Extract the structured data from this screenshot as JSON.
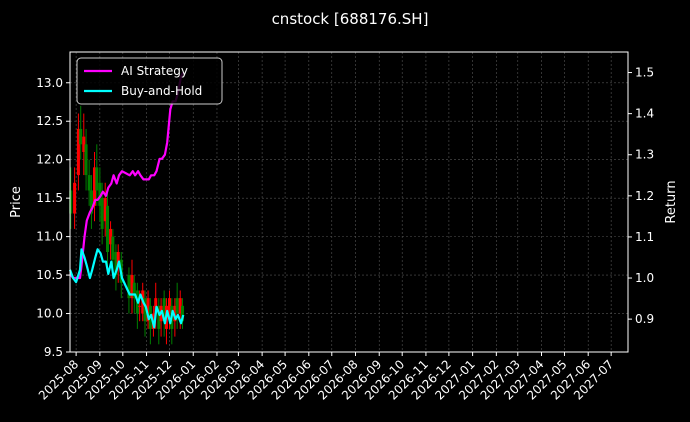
{
  "title": "cnstock [688176.SH]",
  "colors": {
    "background": "#000000",
    "ai_strategy": "#ff00ff",
    "buy_and_hold": "#00ffff",
    "candle_up": "#ff0000",
    "candle_down": "#008000",
    "grid": "#555555"
  },
  "chart_data": {
    "type": "line",
    "title": "cnstock [688176.SH]",
    "grid": true,
    "legend_placement": "top-left",
    "left_axis": {
      "label": "Price",
      "ylim": [
        9.5,
        13.4
      ],
      "ticks": [
        "9.5",
        "10.0",
        "10.5",
        "11.0",
        "11.5",
        "12.0",
        "12.5",
        "13.0"
      ]
    },
    "right_axis": {
      "label": "Return",
      "ylim": [
        0.82,
        1.55
      ],
      "ticks": [
        "0.9",
        "1.0",
        "1.1",
        "1.2",
        "1.3",
        "1.4",
        "1.5"
      ]
    },
    "x_axis": {
      "range": [
        "2025-07-24",
        "2027-07-23"
      ],
      "ticks": [
        "2025-08",
        "2025-09",
        "2025-10",
        "2025-11",
        "2025-12",
        "2026-01",
        "2026-02",
        "2026-03",
        "2026-04",
        "2026-05",
        "2026-06",
        "2026-07",
        "2026-08",
        "2026-09",
        "2026-10",
        "2026-11",
        "2026-12",
        "2027-01",
        "2027-02",
        "2027-03",
        "2027-04",
        "2027-05",
        "2027-06",
        "2027-07"
      ]
    },
    "series": [
      {
        "name": "AI Strategy",
        "axis": "right",
        "x": [
          "2025-07-24",
          "2025-07-28",
          "2025-08-01",
          "2025-08-06",
          "2025-08-08",
          "2025-08-12",
          "2025-08-15",
          "2025-08-19",
          "2025-08-22",
          "2025-08-26",
          "2025-08-29",
          "2025-09-02",
          "2025-09-05",
          "2025-09-09",
          "2025-09-12",
          "2025-09-16",
          "2025-09-19",
          "2025-09-23",
          "2025-09-26",
          "2025-09-30",
          "2025-10-10",
          "2025-10-14",
          "2025-10-17",
          "2025-10-21",
          "2025-10-24",
          "2025-10-28",
          "2025-10-31",
          "2025-11-04",
          "2025-11-07",
          "2025-11-11",
          "2025-11-14",
          "2025-11-18",
          "2025-11-21",
          "2025-11-25",
          "2025-11-28",
          "2025-12-02",
          "2025-12-05",
          "2025-12-09",
          "2025-12-12",
          "2025-12-16",
          "2025-12-19"
        ],
        "values": [
          1.01,
          1.0,
          1.0,
          1.0,
          1.03,
          1.1,
          1.14,
          1.16,
          1.17,
          1.19,
          1.19,
          1.2,
          1.21,
          1.2,
          1.22,
          1.23,
          1.25,
          1.23,
          1.25,
          1.26,
          1.25,
          1.26,
          1.25,
          1.26,
          1.25,
          1.24,
          1.24,
          1.24,
          1.25,
          1.25,
          1.26,
          1.29,
          1.29,
          1.3,
          1.33,
          1.41,
          1.43,
          1.43,
          1.45,
          1.49,
          1.5
        ]
      },
      {
        "name": "Buy-and-Hold",
        "axis": "right",
        "x": [
          "2025-07-24",
          "2025-07-28",
          "2025-08-01",
          "2025-08-06",
          "2025-08-08",
          "2025-08-12",
          "2025-08-15",
          "2025-08-19",
          "2025-08-22",
          "2025-08-26",
          "2025-08-29",
          "2025-09-02",
          "2025-09-05",
          "2025-09-09",
          "2025-09-12",
          "2025-09-16",
          "2025-09-19",
          "2025-09-23",
          "2025-09-26",
          "2025-09-30",
          "2025-10-10",
          "2025-10-14",
          "2025-10-17",
          "2025-10-21",
          "2025-10-24",
          "2025-10-28",
          "2025-10-31",
          "2025-11-04",
          "2025-11-07",
          "2025-11-11",
          "2025-11-14",
          "2025-11-18",
          "2025-11-21",
          "2025-11-25",
          "2025-11-28",
          "2025-12-02",
          "2025-12-05",
          "2025-12-09",
          "2025-12-12",
          "2025-12-16",
          "2025-12-19"
        ],
        "values": [
          1.02,
          1.0,
          0.99,
          1.02,
          1.07,
          1.05,
          1.03,
          1.0,
          1.02,
          1.05,
          1.07,
          1.06,
          1.04,
          1.04,
          1.01,
          1.04,
          1.0,
          1.02,
          1.04,
          1.0,
          0.96,
          0.96,
          0.96,
          0.94,
          0.96,
          0.94,
          0.93,
          0.9,
          0.91,
          0.88,
          0.93,
          0.91,
          0.92,
          0.89,
          0.92,
          0.89,
          0.92,
          0.9,
          0.91,
          0.89,
          0.91
        ]
      },
      {
        "name": "",
        "type": "candlestick",
        "axis": "left",
        "x": [
          "2025-07-25",
          "2025-07-30",
          "2025-08-04",
          "2025-08-07",
          "2025-08-11",
          "2025-08-14",
          "2025-08-18",
          "2025-08-21",
          "2025-08-25",
          "2025-08-28",
          "2025-09-01",
          "2025-09-04",
          "2025-09-08",
          "2025-09-11",
          "2025-09-15",
          "2025-09-18",
          "2025-09-22",
          "2025-09-25",
          "2025-09-29",
          "2025-10-09",
          "2025-10-13",
          "2025-10-16",
          "2025-10-20",
          "2025-10-23",
          "2025-10-27",
          "2025-10-30",
          "2025-11-03",
          "2025-11-06",
          "2025-11-10",
          "2025-11-13",
          "2025-11-17",
          "2025-11-20",
          "2025-11-24",
          "2025-11-27",
          "2025-12-01",
          "2025-12-04",
          "2025-12-08",
          "2025-12-11",
          "2025-12-15",
          "2025-12-18"
        ],
        "open": [
          11.6,
          11.3,
          11.8,
          12.4,
          12.1,
          12.2,
          11.8,
          11.6,
          11.4,
          11.9,
          11.7,
          11.5,
          11.2,
          11.4,
          10.9,
          11.0,
          10.8,
          10.6,
          10.7,
          10.5,
          10.2,
          10.4,
          10.3,
          10.1,
          10.0,
          10.2,
          9.9,
          10.1,
          9.8,
          10.0,
          10.1,
          9.9,
          10.2,
          9.8,
          10.0,
          10.1,
          9.9,
          10.2,
          10.0,
          10.1
        ],
        "close": [
          11.3,
          11.7,
          12.4,
          12.2,
          12.3,
          11.8,
          11.6,
          11.3,
          11.9,
          11.6,
          11.4,
          11.1,
          11.5,
          10.8,
          11.1,
          10.7,
          10.5,
          10.8,
          10.4,
          10.2,
          10.5,
          10.2,
          10.0,
          10.1,
          10.3,
          9.9,
          10.2,
          9.8,
          10.0,
          10.2,
          9.8,
          10.1,
          9.9,
          10.1,
          10.2,
          9.8,
          10.1,
          10.0,
          10.2,
          9.9
        ],
        "high": [
          11.9,
          11.9,
          12.6,
          12.7,
          12.6,
          12.4,
          12.0,
          11.8,
          12.1,
          12.2,
          11.9,
          11.7,
          11.7,
          11.6,
          11.2,
          11.1,
          10.9,
          10.9,
          10.8,
          10.6,
          10.7,
          10.5,
          10.4,
          10.3,
          10.4,
          10.3,
          10.3,
          10.2,
          10.1,
          10.4,
          10.2,
          10.2,
          10.3,
          10.2,
          10.3,
          10.2,
          10.2,
          10.4,
          10.3,
          10.2
        ],
        "low": [
          11.1,
          11.1,
          11.6,
          12.0,
          11.8,
          11.6,
          11.4,
          11.1,
          11.2,
          11.4,
          11.2,
          10.9,
          11.0,
          10.6,
          10.7,
          10.5,
          10.3,
          10.4,
          10.2,
          10.0,
          10.0,
          10.0,
          9.8,
          9.9,
          9.9,
          9.7,
          9.8,
          9.6,
          9.7,
          9.8,
          9.6,
          9.7,
          9.7,
          9.6,
          9.8,
          9.6,
          9.7,
          9.8,
          9.8,
          9.8
        ]
      }
    ]
  }
}
